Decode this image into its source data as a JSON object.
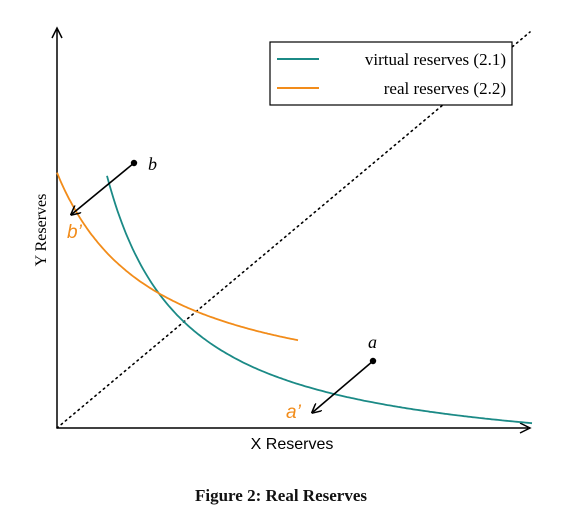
{
  "axes": {
    "x_label": "X Reserves",
    "y_label": "Y Reserves"
  },
  "legend": {
    "virtual_label": "virtual reserves (2.1)",
    "real_label": "real reserves (2.2)"
  },
  "points": {
    "a": "a",
    "b": "b",
    "a_prime": "a’",
    "b_prime": "b’"
  },
  "colors": {
    "virtual": "#1b8a86",
    "real": "#f28c1a",
    "axis": "#000000"
  },
  "caption": "Figure 2: Real Reserves"
}
